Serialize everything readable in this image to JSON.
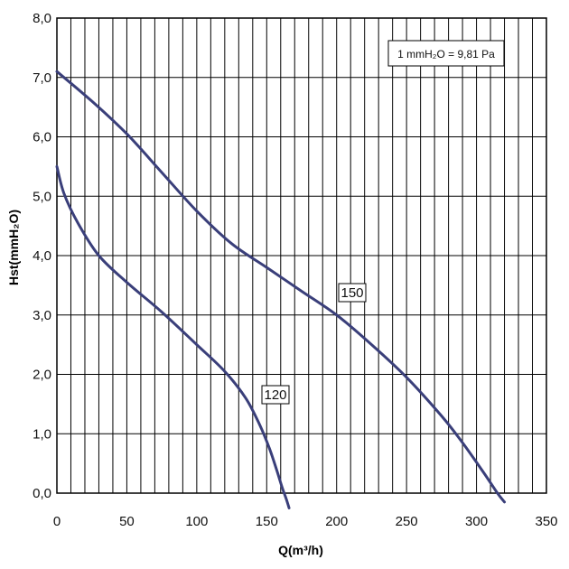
{
  "chart_data": {
    "type": "line",
    "xlabel": "Q(m³/h)",
    "ylabel": "Hst(mmH₂O)",
    "xlim": [
      0,
      350
    ],
    "ylim": [
      0,
      8
    ],
    "x_ticks": [
      "0",
      "50",
      "100",
      "150",
      "200",
      "250",
      "300",
      "350"
    ],
    "y_ticks": [
      "0,0",
      "1,0",
      "2,0",
      "3,0",
      "4,0",
      "5,0",
      "6,0",
      "7,0",
      "8,0"
    ],
    "grid": true,
    "note": "1 mmH₂O = 9,81 Pa",
    "line_color": "#3a3f7a",
    "series": [
      {
        "name": "120",
        "x": [
          0,
          5,
          15,
          30,
          50,
          75,
          100,
          120,
          135,
          145,
          152,
          157,
          161,
          164,
          166
        ],
        "y": [
          5.5,
          5.05,
          4.55,
          4.0,
          3.55,
          3.05,
          2.5,
          2.05,
          1.6,
          1.15,
          0.75,
          0.4,
          0.1,
          -0.1,
          -0.25
        ]
      },
      {
        "name": "150",
        "x": [
          0,
          25,
          50,
          75,
          100,
          125,
          150,
          175,
          200,
          225,
          250,
          275,
          290,
          305,
          315,
          320
        ],
        "y": [
          7.1,
          6.6,
          6.05,
          5.4,
          4.75,
          4.2,
          3.8,
          3.4,
          3.0,
          2.5,
          1.95,
          1.3,
          0.85,
          0.35,
          0.0,
          -0.15
        ]
      }
    ]
  }
}
